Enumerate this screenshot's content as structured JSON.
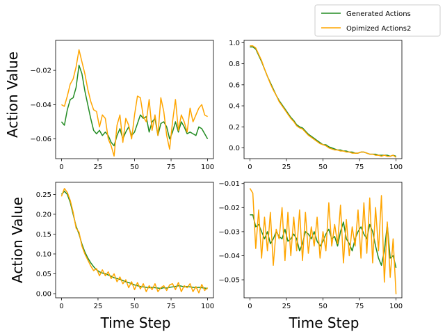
{
  "legend": {
    "entries": [
      {
        "label": "Generated Actions",
        "color": "#228B22"
      },
      {
        "label": "Opimized Actions2",
        "color": "#FFA500"
      }
    ],
    "placement": "upper-right"
  },
  "labels": {
    "ylabel_top": "Action Value",
    "ylabel_bottom": "Action Value",
    "xlabel_left": "Time Step",
    "xlabel_right": "Time Step"
  },
  "chart_data": [
    {
      "type": "line",
      "position": "top-left",
      "xlim": [
        -4,
        104
      ],
      "ylim": [
        -0.0715,
        -0.0025
      ],
      "xticks": [
        0,
        25,
        50,
        75,
        100
      ],
      "yticks": [
        -0.06,
        -0.04,
        -0.02
      ],
      "ytick_labels": [
        "−0.06",
        "−0.04",
        "−0.02"
      ],
      "series": [
        {
          "name": "Generated Actions",
          "color": "#228B22",
          "x": [
            0,
            2,
            4,
            6,
            8,
            10,
            12,
            14,
            16,
            18,
            20,
            22,
            24,
            26,
            28,
            30,
            32,
            34,
            36,
            38,
            40,
            42,
            44,
            46,
            48,
            50,
            52,
            54,
            56,
            58,
            60,
            62,
            64,
            66,
            68,
            70,
            72,
            74,
            76,
            78,
            80,
            82,
            84,
            86,
            88,
            90,
            92,
            94,
            96,
            98,
            100
          ],
          "y": [
            -0.05,
            -0.052,
            -0.043,
            -0.037,
            -0.036,
            -0.03,
            -0.017,
            -0.022,
            -0.032,
            -0.04,
            -0.048,
            -0.055,
            -0.057,
            -0.055,
            -0.058,
            -0.056,
            -0.058,
            -0.062,
            -0.064,
            -0.058,
            -0.054,
            -0.06,
            -0.056,
            -0.053,
            -0.058,
            -0.056,
            -0.051,
            -0.046,
            -0.048,
            -0.047,
            -0.056,
            -0.05,
            -0.048,
            -0.058,
            -0.051,
            -0.05,
            -0.053,
            -0.06,
            -0.056,
            -0.05,
            -0.056,
            -0.05,
            -0.053,
            -0.057,
            -0.056,
            -0.057,
            -0.058,
            -0.053,
            -0.054,
            -0.057,
            -0.06
          ]
        },
        {
          "name": "Opimized Actions2",
          "color": "#FFA500",
          "x": [
            0,
            2,
            4,
            6,
            8,
            10,
            12,
            14,
            16,
            18,
            20,
            22,
            24,
            26,
            28,
            30,
            32,
            34,
            36,
            38,
            40,
            42,
            44,
            46,
            48,
            50,
            52,
            54,
            56,
            58,
            60,
            62,
            64,
            66,
            68,
            70,
            72,
            74,
            76,
            78,
            80,
            82,
            84,
            86,
            88,
            90,
            92,
            94,
            96,
            98,
            100
          ],
          "y": [
            -0.04,
            -0.041,
            -0.035,
            -0.028,
            -0.025,
            -0.018,
            -0.008,
            -0.015,
            -0.022,
            -0.031,
            -0.038,
            -0.043,
            -0.044,
            -0.053,
            -0.046,
            -0.048,
            -0.06,
            -0.064,
            -0.07,
            -0.052,
            -0.046,
            -0.062,
            -0.048,
            -0.052,
            -0.06,
            -0.046,
            -0.035,
            -0.036,
            -0.047,
            -0.05,
            -0.037,
            -0.055,
            -0.046,
            -0.058,
            -0.036,
            -0.044,
            -0.058,
            -0.066,
            -0.05,
            -0.037,
            -0.055,
            -0.046,
            -0.05,
            -0.056,
            -0.042,
            -0.05,
            -0.046,
            -0.042,
            -0.04,
            -0.046,
            -0.047
          ]
        }
      ]
    },
    {
      "type": "line",
      "position": "top-right",
      "xlim": [
        -4,
        104
      ],
      "ylim": [
        -0.1025,
        1.0225
      ],
      "xticks": [
        0,
        25,
        50,
        75,
        100
      ],
      "yticks": [
        0.0,
        0.2,
        0.4,
        0.6,
        0.8,
        1.0
      ],
      "ytick_labels": [
        "0.0",
        "0.2",
        "0.4",
        "0.6",
        "0.8",
        "1.0"
      ],
      "series": [
        {
          "name": "Generated Actions",
          "color": "#228B22",
          "x": [
            0,
            2,
            4,
            6,
            8,
            10,
            12,
            14,
            16,
            18,
            20,
            22,
            24,
            26,
            28,
            30,
            32,
            34,
            36,
            38,
            40,
            42,
            44,
            46,
            48,
            50,
            52,
            54,
            56,
            58,
            60,
            62,
            64,
            66,
            68,
            70,
            72,
            74,
            76,
            78,
            80,
            82,
            84,
            86,
            88,
            90,
            92,
            94,
            96,
            98,
            100
          ],
          "y": [
            0.96,
            0.96,
            0.94,
            0.88,
            0.82,
            0.75,
            0.68,
            0.62,
            0.56,
            0.5,
            0.45,
            0.41,
            0.37,
            0.33,
            0.29,
            0.26,
            0.22,
            0.2,
            0.19,
            0.16,
            0.13,
            0.11,
            0.09,
            0.07,
            0.05,
            0.03,
            0.03,
            0.01,
            0.0,
            -0.01,
            -0.02,
            -0.02,
            -0.03,
            -0.03,
            -0.04,
            -0.04,
            -0.05,
            -0.05,
            -0.04,
            -0.04,
            -0.05,
            -0.06,
            -0.06,
            -0.06,
            -0.07,
            -0.07,
            -0.07,
            -0.07,
            -0.08,
            -0.07,
            -0.08
          ]
        },
        {
          "name": "Opimized Actions2",
          "color": "#FFA500",
          "x": [
            0,
            2,
            4,
            6,
            8,
            10,
            12,
            14,
            16,
            18,
            20,
            22,
            24,
            26,
            28,
            30,
            32,
            34,
            36,
            38,
            40,
            42,
            44,
            46,
            48,
            50,
            52,
            54,
            56,
            58,
            60,
            62,
            64,
            66,
            68,
            70,
            72,
            74,
            76,
            78,
            80,
            82,
            84,
            86,
            88,
            90,
            92,
            94,
            96,
            98,
            100
          ],
          "y": [
            0.97,
            0.97,
            0.95,
            0.89,
            0.83,
            0.75,
            0.68,
            0.61,
            0.55,
            0.5,
            0.44,
            0.4,
            0.36,
            0.32,
            0.28,
            0.25,
            0.21,
            0.19,
            0.18,
            0.15,
            0.12,
            0.1,
            0.08,
            0.06,
            0.04,
            0.03,
            0.02,
            0.0,
            -0.01,
            -0.02,
            -0.02,
            -0.03,
            -0.03,
            -0.04,
            -0.04,
            -0.05,
            -0.05,
            -0.05,
            -0.04,
            -0.04,
            -0.05,
            -0.06,
            -0.06,
            -0.07,
            -0.07,
            -0.08,
            -0.07,
            -0.08,
            -0.08,
            -0.07,
            -0.09
          ]
        }
      ]
    },
    {
      "type": "line",
      "position": "bottom-left",
      "xlim": [
        -4,
        104
      ],
      "ylim": [
        -0.0105,
        0.2805
      ],
      "xticks": [
        0,
        25,
        50,
        75,
        100
      ],
      "yticks": [
        0.0,
        0.05,
        0.1,
        0.15,
        0.2,
        0.25
      ],
      "ytick_labels": [
        "0.00",
        "0.05",
        "0.10",
        "0.15",
        "0.20",
        "0.25"
      ],
      "series": [
        {
          "name": "Generated Actions",
          "color": "#228B22",
          "x": [
            0,
            2,
            4,
            6,
            8,
            10,
            12,
            14,
            16,
            18,
            20,
            22,
            24,
            26,
            28,
            30,
            32,
            34,
            36,
            38,
            40,
            42,
            44,
            46,
            48,
            50,
            52,
            54,
            56,
            58,
            60,
            62,
            64,
            66,
            68,
            70,
            72,
            74,
            76,
            78,
            80,
            82,
            84,
            86,
            88,
            90,
            92,
            94,
            96,
            98,
            100
          ],
          "y": [
            0.25,
            0.258,
            0.25,
            0.23,
            0.2,
            0.17,
            0.15,
            0.125,
            0.105,
            0.09,
            0.078,
            0.068,
            0.06,
            0.055,
            0.052,
            0.05,
            0.047,
            0.044,
            0.04,
            0.038,
            0.036,
            0.033,
            0.03,
            0.028,
            0.025,
            0.022,
            0.02,
            0.018,
            0.017,
            0.016,
            0.015,
            0.016,
            0.015,
            0.014,
            0.013,
            0.015,
            0.014,
            0.016,
            0.017,
            0.018,
            0.02,
            0.019,
            0.017,
            0.018,
            0.017,
            0.016,
            0.015,
            0.016,
            0.015,
            0.014,
            0.013
          ]
        },
        {
          "name": "Opimized Actions2",
          "color": "#FFA500",
          "x": [
            0,
            2,
            4,
            6,
            8,
            10,
            12,
            14,
            16,
            18,
            20,
            22,
            24,
            26,
            28,
            30,
            32,
            34,
            36,
            38,
            40,
            42,
            44,
            46,
            48,
            50,
            52,
            54,
            56,
            58,
            60,
            62,
            64,
            66,
            68,
            70,
            72,
            74,
            76,
            78,
            80,
            82,
            84,
            86,
            88,
            90,
            92,
            94,
            96,
            98,
            100
          ],
          "y": [
            0.245,
            0.265,
            0.255,
            0.235,
            0.205,
            0.165,
            0.155,
            0.12,
            0.1,
            0.085,
            0.07,
            0.058,
            0.063,
            0.045,
            0.06,
            0.045,
            0.055,
            0.038,
            0.05,
            0.03,
            0.042,
            0.025,
            0.035,
            0.015,
            0.03,
            0.01,
            0.028,
            0.012,
            0.025,
            0.005,
            0.02,
            0.01,
            0.025,
            0.005,
            0.015,
            0.02,
            0.008,
            0.022,
            0.025,
            0.01,
            0.028,
            0.005,
            0.02,
            0.015,
            0.025,
            0.005,
            0.018,
            0.002,
            0.023,
            0.008,
            0.015
          ]
        }
      ]
    },
    {
      "type": "line",
      "position": "bottom-right",
      "xlim": [
        -4,
        104
      ],
      "ylim": [
        -0.0575,
        -0.0095
      ],
      "xticks": [
        0,
        25,
        50,
        75,
        100
      ],
      "yticks": [
        -0.05,
        -0.04,
        -0.03,
        -0.02,
        -0.01
      ],
      "ytick_labels": [
        "−0.05",
        "−0.04",
        "−0.03",
        "−0.02",
        "−0.01"
      ],
      "series": [
        {
          "name": "Generated Actions",
          "color": "#228B22",
          "x": [
            0,
            2,
            4,
            6,
            8,
            10,
            12,
            14,
            16,
            18,
            20,
            22,
            24,
            26,
            28,
            30,
            32,
            34,
            36,
            38,
            40,
            42,
            44,
            46,
            48,
            50,
            52,
            54,
            56,
            58,
            60,
            62,
            64,
            66,
            68,
            70,
            72,
            74,
            76,
            78,
            80,
            82,
            84,
            86,
            88,
            90,
            92,
            94,
            96,
            98,
            100
          ],
          "y": [
            -0.023,
            -0.023,
            -0.028,
            -0.027,
            -0.03,
            -0.033,
            -0.03,
            -0.035,
            -0.033,
            -0.03,
            -0.032,
            -0.033,
            -0.029,
            -0.034,
            -0.033,
            -0.031,
            -0.033,
            -0.038,
            -0.035,
            -0.03,
            -0.031,
            -0.033,
            -0.03,
            -0.034,
            -0.036,
            -0.034,
            -0.031,
            -0.029,
            -0.033,
            -0.032,
            -0.036,
            -0.03,
            -0.026,
            -0.033,
            -0.035,
            -0.038,
            -0.033,
            -0.03,
            -0.028,
            -0.031,
            -0.033,
            -0.027,
            -0.03,
            -0.036,
            -0.041,
            -0.044,
            -0.038,
            -0.027,
            -0.041,
            -0.04,
            -0.045
          ]
        },
        {
          "name": "Opimized Actions2",
          "color": "#FFA500",
          "x": [
            0,
            2,
            4,
            6,
            8,
            10,
            12,
            14,
            16,
            18,
            20,
            22,
            24,
            26,
            28,
            30,
            32,
            34,
            36,
            38,
            40,
            42,
            44,
            46,
            48,
            50,
            52,
            54,
            56,
            58,
            60,
            62,
            64,
            66,
            68,
            70,
            72,
            74,
            76,
            78,
            80,
            82,
            84,
            86,
            88,
            90,
            92,
            94,
            96,
            98,
            100
          ],
          "y": [
            -0.012,
            -0.014,
            -0.037,
            -0.021,
            -0.041,
            -0.024,
            -0.038,
            -0.022,
            -0.044,
            -0.029,
            -0.033,
            -0.02,
            -0.042,
            -0.022,
            -0.04,
            -0.024,
            -0.038,
            -0.021,
            -0.042,
            -0.022,
            -0.039,
            -0.028,
            -0.036,
            -0.024,
            -0.041,
            -0.03,
            -0.038,
            -0.018,
            -0.036,
            -0.027,
            -0.035,
            -0.019,
            -0.043,
            -0.025,
            -0.04,
            -0.028,
            -0.036,
            -0.021,
            -0.041,
            -0.018,
            -0.039,
            -0.016,
            -0.043,
            -0.02,
            -0.038,
            -0.015,
            -0.051,
            -0.026,
            -0.049,
            -0.033,
            -0.056
          ]
        }
      ]
    }
  ]
}
